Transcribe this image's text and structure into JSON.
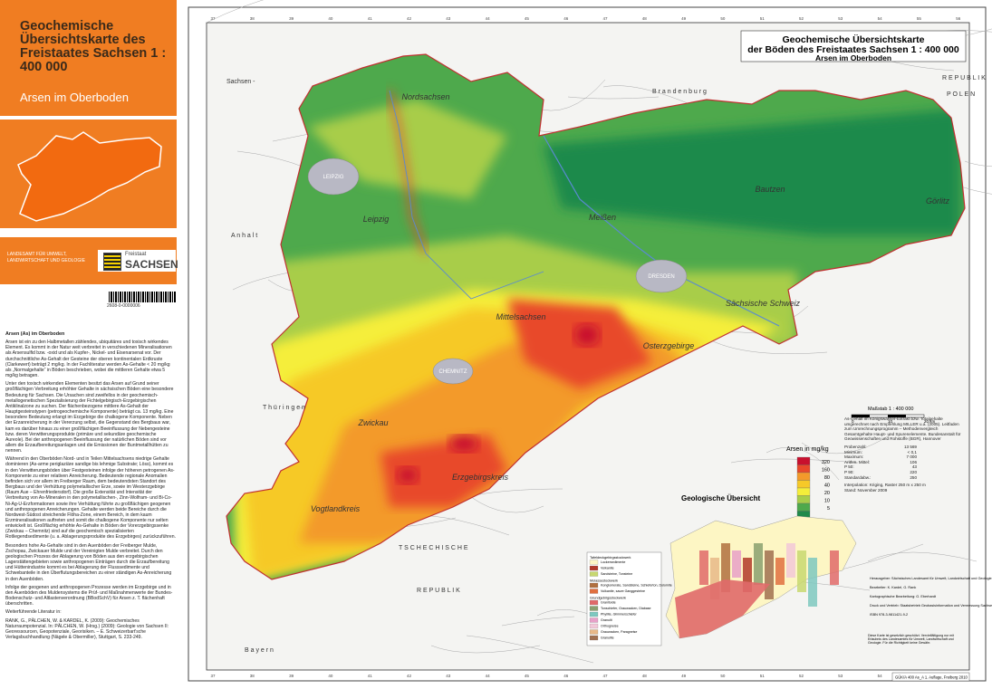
{
  "sidebar": {
    "title": "Geochemische Übersichtskarte des Freistaates Sachsen 1 : 400 000",
    "subtitle": "Arsen im Oberboden",
    "agency": "LANDESAMT FÜR UMWELT, LANDWIRTSCHAFT UND GEOLOGIE",
    "state_small": "Freistaat",
    "state": "SACHSEN",
    "barcode": "2608-0-0000006",
    "text_heading": "Arsen (As) im Oberboden",
    "paragraphs": [
      "Arsen ist ein zu den Halbmetallen zählendes, ubiquitäres und toxisch wirkendes Element. Es kommt in der Natur weit verbreitet in verschiedenen Mineralisationen als Arsensulfid bzw. -oxid und als Kupfer-, Nickel- und Eisenarsenat vor. Der durchschnittliche As-Gehalt der Gesteine der oberen kontinentalen Erdkruste (Clarkewert) beträgt 2 mg/kg. In der Fachliteratur werden As-Gehalte < 20 mg/kg als „Normalgehalte“ in Böden beschrieben, wobei die mittleren Gehalte etwa 5 mg/kg betragen.",
      "Unter den toxisch wirkenden Elementen besitzt das Arsen auf Grund seiner großflächigen Verbreitung erhöhter Gehalte in sächsischen Böden eine besondere Bedeutung für Sachsen. Die Ursachen sind zweifellos in der geochemisch-metallogenetischen Spezialisierung der Fichtelgebirgisch-Erzgebirgischen Antiklinalzone zu suchen. Der flächenbezogene mittlere As-Gehalt der Hauptgesteinstypen (petrogeochemische Komponente) beträgt ca. 13 mg/kg. Eine besondere Bedeutung erlangt im Erzgebirge die chalkogene Komponente. Neben der Erzanreicherung in der Vererzung selbst, die Gegenstand des Bergbaus war, kam es darüber hinaus zu einer großflächigen Beeinflussung der Nebengesteine bzw. deren Verwitterungsprodukte (primäre und sekundäre geochemische Aureole). Bei der anthropogenen Beeinflussung der natürlichen Böden sind vor allem die Erzaufbereitungsanlagen und die Emissionen der Buntmetallhütten zu nennen.",
      "Während in den Oberböden Nord- und in Teilen Mittelsachsens niedrige Gehalte dominieren (As-arme periglaziäre sandige bis lehmige Substrate; Löss), kommt es in den Verwitterungsböden über Festgesteinen infolge der höheren petrogenen As-Komponente zu einer relativen Anreicherung. Bedeutende regionale Anomalien befinden sich vor allem im Freiberger Raum, dem bedeutendsten Standort des Bergbaus und der Verhüttung polymetallischer Erze, sowie im Westerzgebirge (Raum Aue – Ehrenfriedersdorf). Die große Extensität und Intensität der Verbreitung von As-Mineralen in den polymetallischen-, Zinn-Wolfram- und Bi-Co-Ni-Ag-U-Erzformationen sowie ihre Verhüttung führte zu großflächigen geogenen und anthropogenen Anreicherungen. Gehalte werden beide Bereiche durch die Nordwest-Südost streichende Flöha-Zone, einem Bereich, in dem kaum Erzmineralisationen auftreten und somit die chalkogene Komponente nur selten entwickelt ist. Großflächig erhöhte As-Gehalte in Böden der Vorerzgebirgssenke (Zwickau – Chemnitz) sind auf die geochemisch spezialisierten Rotliegendsedimente (u. a. Ablagerungsprodukte des Erzgebirges) zurückzuführen.",
      "Besonders hohe As-Gehalte sind in den Auenböden der Freiberger Mulde, Zschopau, Zwickauer Mulde und der Vereinigten Mulde verbreitet. Durch den geologischen Prozess der Ablagerung von Böden aus den erzgebirgischen Lagerstättengebieten sowie anthropogenen Einträgen durch die Erzaufbereitung und Hüttenindustrie kommt es bei Ablagerung der Flusssedimente und Schwebanteile in den Überflutungsbereichen zu einer ständigen As-Anreicherung in den Auenböden.",
      "Infolge der geogenen und anthropogenen Prozesse werden im Erzgebirge und in den Auenböden des Muldensystems die Prüf- und Maßnahmenwerte der Bundes-Bodenschutz- und Altlastenverordnung (BBodSchV) für Arsen z. T. flächenhaft überschritten.",
      "Weiterführende Literatur in:",
      "RANK, G., PÄLCHEN, W. & KARDEL, K. (2009): Geochemisches Naturraumpotenzial. In: PÄLCHEN, W. (Hrsg.) (2009): Geologie von Sachsen II: Georessourcen, Geopotenziale, Georisiken. – E. Schweizerbart'sche Verlagsbuchhandlung (Nägele & Obermiller), Stuttgart, S. 233-249."
    ]
  },
  "map": {
    "title": "Geochemische Übersichtskarte",
    "title2": "der Böden des Freistaates Sachsen 1 : 400 000",
    "subtitle": "Arsen im Oberboden",
    "grid_labels": [
      "37",
      "38",
      "39",
      "40",
      "41",
      "42",
      "43",
      "44",
      "45",
      "46",
      "47",
      "48",
      "49",
      "50",
      "51",
      "52",
      "53",
      "54",
      "55",
      "56"
    ],
    "regions": [
      "Nordsachsen",
      "Leipzig",
      "Meißen",
      "Bautzen",
      "Görlitz",
      "Sächsische Schweiz",
      "Mittelsachsen",
      "Osterzgebirge",
      "Zwickau",
      "Erzgebirgskreis",
      "Vogtlandkreis"
    ],
    "cities": [
      "LEIPZIG",
      "CHEMNITZ",
      "DRESDEN"
    ],
    "neighbours": [
      "Sachsen -",
      "A n h a l t",
      "B r a n d e n b u r g",
      "R E P U B L I K",
      "P O L E N",
      "T h ü r i n g e n",
      "T S C H E C H I S C H E",
      "R E P U B L I K",
      "B a y e r n"
    ],
    "scale": "Maßstab 1 : 400 000",
    "scale_ticks": [
      "0",
      "10",
      "20 km"
    ],
    "footer": "GÜK/A 400 As_A 1. Auflage, Freiberg 2010"
  },
  "legend": {
    "title": "Arsen in mg/kg",
    "items": [
      {
        "label": "320",
        "color": "#c8102e"
      },
      {
        "label": "160",
        "color": "#e8482a"
      },
      {
        "label": "80",
        "color": "#f39a2b"
      },
      {
        "label": "40",
        "color": "#f6c928"
      },
      {
        "label": "20",
        "color": "#f5ee3a"
      },
      {
        "label": "10",
        "color": "#a8cd4a"
      },
      {
        "label": "5",
        "color": "#4ea94c"
      },
      {
        "label": "",
        "color": "#1f8a4b"
      }
    ]
  },
  "stats": {
    "note": "As-Gehalt im Königswasser-Extrakt bzw. Totalgehalte umgerechnet nach Empfehlung MILLER u.a. (2005). Leitfaden zum Umrechnungsprogramm – Methodenvergleich Gesamtgehalte Haupt- und Spurenelemente. Bundesanstalt für Geowissenschaften und Rohstoffe (BGR), Hannover",
    "rows": [
      [
        "Probenzahl:",
        "13 569"
      ],
      [
        "Minimum:",
        "< 0,1"
      ],
      [
        "Maximum:",
        "7 000"
      ],
      [
        "Arithm. Mittel:",
        "106"
      ],
      [
        "P 50:",
        "43"
      ],
      [
        "P 90:",
        "220"
      ],
      [
        "Standardabw.:",
        "250"
      ]
    ],
    "interpolation": "Interpolation: Kriging, Raster 250 m x 250 m",
    "stand": "Stand: November 2009"
  },
  "geology": {
    "title": "Geologische Übersicht",
    "groups": [
      {
        "heading": "Tafeldeckgebirgsstockwerk",
        "items": [
          {
            "label": "Lockersedimente",
            "color": "#fdf6c4"
          },
          {
            "label": "Vulkanite",
            "color": "#b23a2a"
          },
          {
            "label": "Sandsteine, Tonsteine",
            "color": "#c8d870"
          }
        ]
      },
      {
        "heading": "Molassestockwerk",
        "items": [
          {
            "label": "Konglomerate, Sandsteine, Schieferton, Dolomite",
            "color": "#b07040"
          },
          {
            "label": "Vulkanite, saure Ganggesteine",
            "color": "#e07040"
          }
        ]
      },
      {
        "heading": "Grundgebirgsstockwerk",
        "items": [
          {
            "label": "Granitoide",
            "color": "#e06a6a"
          },
          {
            "label": "Tonschiefer, Grauwacken, Diabase",
            "color": "#8aa070"
          },
          {
            "label": "Phyllite, Glimmerschiefer",
            "color": "#7ec8c0"
          },
          {
            "label": "Granulit",
            "color": "#e8a0c8"
          },
          {
            "label": "Orthogneise",
            "color": "#f2c8d8"
          },
          {
            "label": "Grauwacken, Paragneise",
            "color": "#e8b888"
          },
          {
            "label": "Granulite",
            "color": "#a07050"
          }
        ]
      }
    ],
    "imprint": [
      "Herausgeber: Sächsisches Landesamt für Umwelt, Landwirtschaft und Geologie",
      "Bearbeiter: K. Kardel, G. Rank",
      "Kartographische Bearbeitung: G. Eberhardt",
      "Druck und Vertrieb: Staatsbetrieb Geobasisinformation und Vermessung Sachsen (GeoSN)",
      "ISBN 978-3-9811421-9-2"
    ],
    "disclaimer": "Diese Karte ist gesetzlich geschützt. Vervielfältigung nur mit Erlaubnis des Landesamtes für Umwelt, Landwirtschaft und Geologie. Für die Richtigkeit keine Gewähr."
  }
}
